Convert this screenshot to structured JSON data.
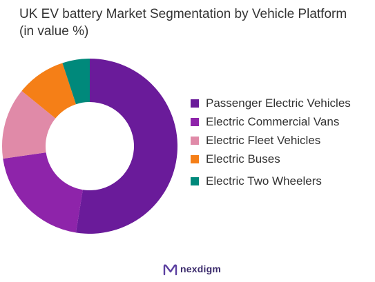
{
  "chart_data": {
    "type": "pie",
    "title": "UK EV battery Market Segmentation by Vehicle Platform (in value %)",
    "categories": [
      "Passenger Electric Vehicles",
      "Electric Commercial Vans",
      "Electric Fleet Vehicles",
      "Electric Buses",
      "Electric Two Wheelers"
    ],
    "values": [
      52,
      20,
      13,
      9,
      5
    ],
    "colors": [
      "#6a1b9a",
      "#8e24aa",
      "#e08aa8",
      "#f57f17",
      "#00897b"
    ],
    "legend_position": "right",
    "hole": "donut"
  },
  "brand": {
    "name": "nexdigm",
    "logo_icon": "nexdigm-logo-icon"
  }
}
